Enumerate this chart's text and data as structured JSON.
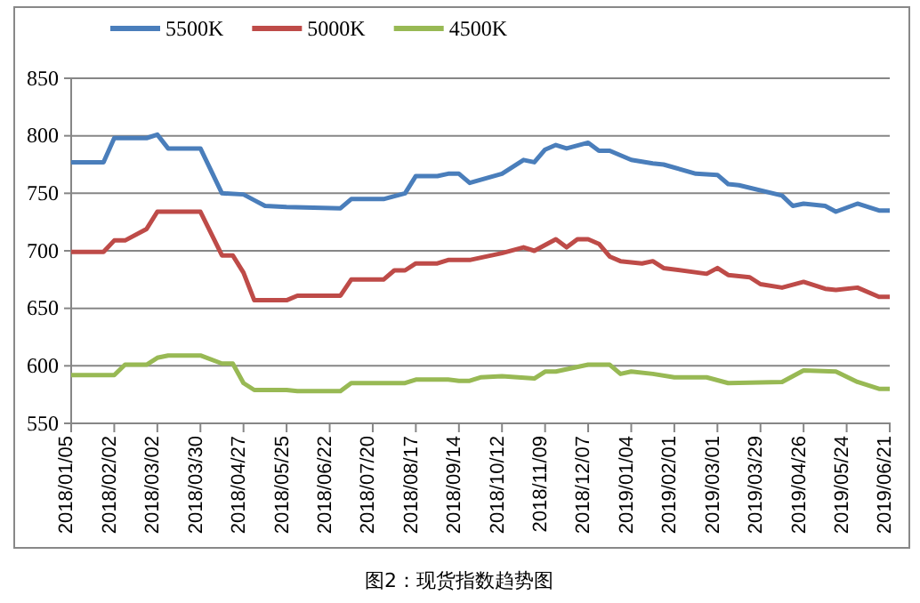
{
  "chart_data": {
    "type": "line",
    "title": "图2：现货指数趋势图",
    "xlim": [
      "2018-01-05",
      "2019-06-21"
    ],
    "xticks": [
      {
        "value": "2018-01-05",
        "label": "2018/01/05"
      },
      {
        "value": "2018-02-02",
        "label": "2018/02/02"
      },
      {
        "value": "2018-03-02",
        "label": "2018/03/02"
      },
      {
        "value": "2018-03-30",
        "label": "2018/03/30"
      },
      {
        "value": "2018-04-27",
        "label": "2018/04/27"
      },
      {
        "value": "2018-05-25",
        "label": "2018/05/25"
      },
      {
        "value": "2018-06-22",
        "label": "2018/06/22"
      },
      {
        "value": "2018-07-20",
        "label": "2018/07/20"
      },
      {
        "value": "2018-08-17",
        "label": "2018/08/17"
      },
      {
        "value": "2018-09-14",
        "label": "2018/09/14"
      },
      {
        "value": "2018-10-12",
        "label": "2018/10/12"
      },
      {
        "value": "2018-11-09",
        "label": "2018/11/09"
      },
      {
        "value": "2018-12-07",
        "label": "2018/12/07"
      },
      {
        "value": "2019-01-04",
        "label": "2019/01/04"
      },
      {
        "value": "2019-02-01",
        "label": "2019/02/01"
      },
      {
        "value": "2019-03-01",
        "label": "2019/03/01"
      },
      {
        "value": "2019-03-29",
        "label": "2019/03/29"
      },
      {
        "value": "2019-04-26",
        "label": "2019/04/26"
      },
      {
        "value": "2019-05-24",
        "label": "2019/05/24"
      },
      {
        "value": "2019-06-21",
        "label": "2019/06/21"
      }
    ],
    "ylim": [
      550,
      850
    ],
    "yticks": [
      550,
      600,
      650,
      700,
      750,
      800,
      850
    ],
    "grid": "y",
    "legend": "top",
    "marker": "none",
    "line_style": "solid",
    "series": [
      {
        "name": "5500K",
        "color": "#4a7ebb",
        "x": [
          "2018-01-05",
          "2018-01-26",
          "2018-02-02",
          "2018-02-23",
          "2018-03-02",
          "2018-03-09",
          "2018-03-30",
          "2018-04-13",
          "2018-04-27",
          "2018-05-04",
          "2018-05-11",
          "2018-05-25",
          "2018-06-29",
          "2018-07-06",
          "2018-07-27",
          "2018-08-10",
          "2018-08-17",
          "2018-08-31",
          "2018-09-07",
          "2018-09-14",
          "2018-09-21",
          "2018-10-12",
          "2018-10-26",
          "2018-11-02",
          "2018-11-09",
          "2018-11-16",
          "2018-11-23",
          "2018-12-07",
          "2018-12-14",
          "2018-12-21",
          "2019-01-04",
          "2019-01-18",
          "2019-01-25",
          "2019-02-15",
          "2019-03-01",
          "2019-03-08",
          "2019-03-15",
          "2019-04-12",
          "2019-04-19",
          "2019-04-26",
          "2019-05-10",
          "2019-05-17",
          "2019-05-31",
          "2019-06-14",
          "2019-06-21"
        ],
        "values": [
          777,
          777,
          798,
          798,
          801,
          789,
          789,
          750,
          749,
          744,
          739,
          738,
          737,
          745,
          745,
          750,
          765,
          765,
          767,
          767,
          759,
          767,
          779,
          777,
          788,
          792,
          789,
          794,
          787,
          787,
          779,
          776,
          775,
          767,
          766,
          758,
          757,
          748,
          739,
          741,
          739,
          734,
          741,
          735,
          735
        ]
      },
      {
        "name": "5000K",
        "color": "#be4b48",
        "x": [
          "2018-01-05",
          "2018-01-26",
          "2018-02-02",
          "2018-02-09",
          "2018-02-23",
          "2018-03-02",
          "2018-03-30",
          "2018-04-13",
          "2018-04-20",
          "2018-04-27",
          "2018-05-04",
          "2018-05-25",
          "2018-06-01",
          "2018-06-29",
          "2018-07-06",
          "2018-07-27",
          "2018-08-03",
          "2018-08-10",
          "2018-08-17",
          "2018-08-31",
          "2018-09-07",
          "2018-09-21",
          "2018-10-12",
          "2018-10-26",
          "2018-11-02",
          "2018-11-16",
          "2018-11-23",
          "2018-11-30",
          "2018-12-07",
          "2018-12-14",
          "2018-12-21",
          "2018-12-28",
          "2019-01-11",
          "2019-01-18",
          "2019-01-25",
          "2019-02-22",
          "2019-03-01",
          "2019-03-08",
          "2019-03-22",
          "2019-03-29",
          "2019-04-12",
          "2019-04-26",
          "2019-05-10",
          "2019-05-17",
          "2019-05-31",
          "2019-06-14",
          "2019-06-21"
        ],
        "values": [
          699,
          699,
          709,
          709,
          719,
          734,
          734,
          696,
          696,
          681,
          657,
          657,
          661,
          661,
          675,
          675,
          683,
          683,
          689,
          689,
          692,
          692,
          698,
          703,
          700,
          710,
          703,
          710,
          710,
          706,
          695,
          691,
          689,
          691,
          685,
          680,
          685,
          679,
          677,
          671,
          668,
          673,
          667,
          666,
          668,
          660,
          660
        ]
      },
      {
        "name": "4500K",
        "color": "#98b954",
        "x": [
          "2018-01-05",
          "2018-02-02",
          "2018-02-09",
          "2018-02-23",
          "2018-03-02",
          "2018-03-09",
          "2018-03-30",
          "2018-04-13",
          "2018-04-20",
          "2018-04-27",
          "2018-05-04",
          "2018-05-25",
          "2018-06-01",
          "2018-06-29",
          "2018-07-06",
          "2018-08-10",
          "2018-08-17",
          "2018-09-07",
          "2018-09-14",
          "2018-09-21",
          "2018-09-28",
          "2018-10-12",
          "2018-11-02",
          "2018-11-09",
          "2018-11-16",
          "2018-12-07",
          "2018-12-21",
          "2018-12-28",
          "2019-01-04",
          "2019-01-18",
          "2019-02-01",
          "2019-02-22",
          "2019-03-08",
          "2019-04-12",
          "2019-04-26",
          "2019-05-17",
          "2019-05-31",
          "2019-06-14",
          "2019-06-21"
        ],
        "values": [
          592,
          592,
          601,
          601,
          607,
          609,
          609,
          602,
          602,
          585,
          579,
          579,
          578,
          578,
          585,
          585,
          588,
          588,
          587,
          587,
          590,
          591,
          589,
          595,
          595,
          601,
          601,
          593,
          595,
          593,
          590,
          590,
          585,
          586,
          596,
          595,
          586,
          580,
          580
        ]
      }
    ]
  }
}
